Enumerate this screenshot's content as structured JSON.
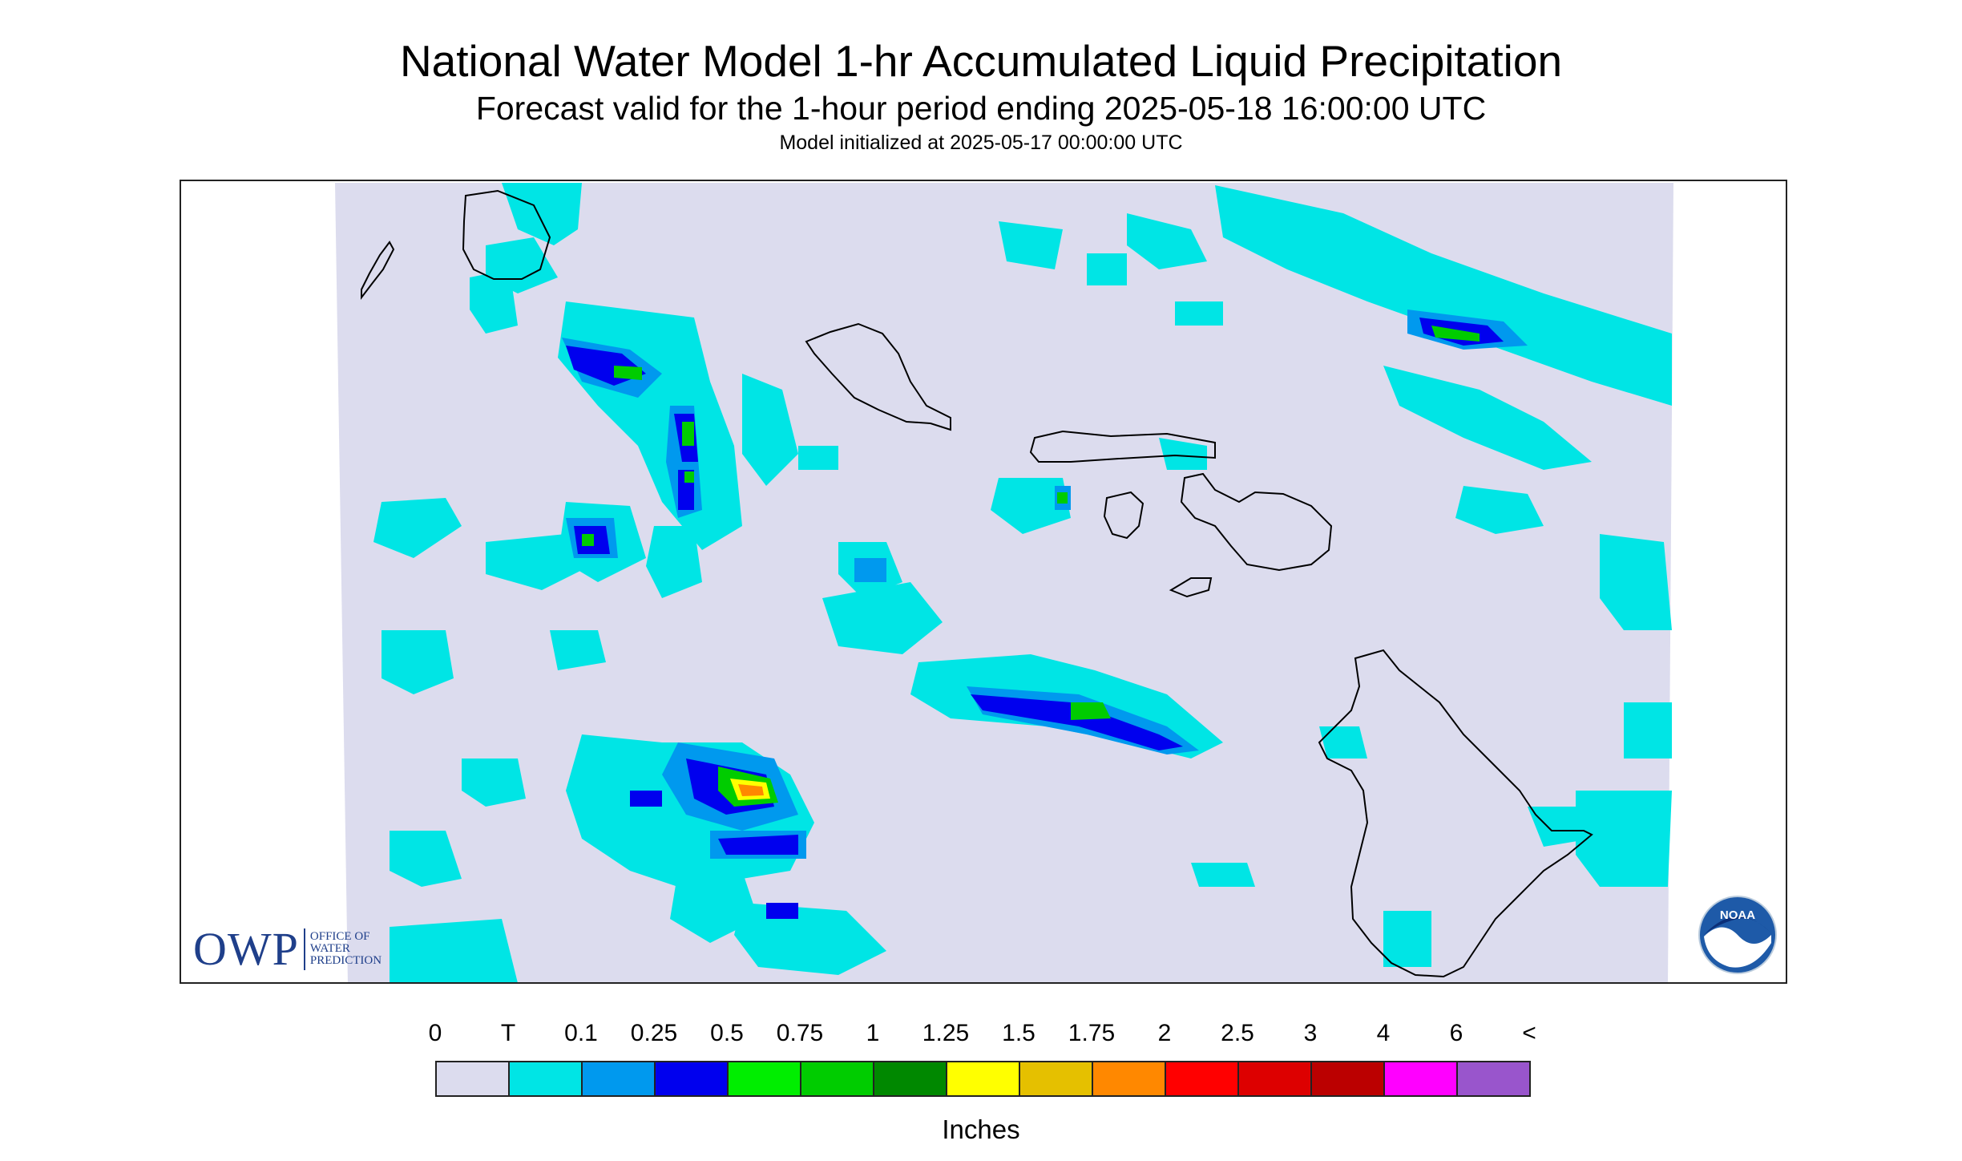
{
  "title": "National Water Model 1-hr Accumulated Liquid Precipitation",
  "subtitle": "Forecast valid for the 1-hour period ending 2025-05-18 16:00:00 UTC",
  "init_line": "Model initialized at 2025-05-17 00:00:00 UTC",
  "logos": {
    "owp_letters": "OWP",
    "owp_line1": "OFFICE OF",
    "owp_line2": "WATER",
    "owp_line3": "PREDICTION",
    "noaa_text": "NOAA"
  },
  "legend": {
    "labels": [
      "0",
      "T",
      "0.1",
      "0.25",
      "0.5",
      "0.75",
      "1",
      "1.25",
      "1.5",
      "1.75",
      "2",
      "2.5",
      "3",
      "4",
      "6",
      "<"
    ],
    "colors": [
      "#dcdcee",
      "#00e5e5",
      "#0099ee",
      "#0000ee",
      "#00ee00",
      "#00cc00",
      "#008800",
      "#ffff00",
      "#e5c000",
      "#ff8800",
      "#ff0000",
      "#dd0000",
      "#bb0000",
      "#ff00ff",
      "#9955cc"
    ],
    "units": "Inches"
  },
  "map": {
    "background_color": "#dcdcee",
    "coastline_color": "#000000",
    "islands": [
      "Niihau",
      "Kauai",
      "Oahu",
      "Molokai",
      "Lanai",
      "Maui",
      "Kahoolawe",
      "Hawaii"
    ]
  }
}
